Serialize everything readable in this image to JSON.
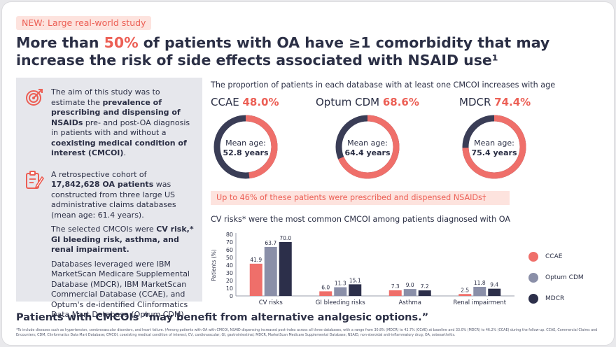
{
  "badge": "NEW: Large real-world study",
  "headline": {
    "part1": "More than ",
    "highlight": "50%",
    "part2": " of patients with OA have ≥1 comorbidity that may increase the risk of side effects associated with NSAID use¹"
  },
  "sidepanel": {
    "block1": {
      "t1": "The aim of this study was to estimate the ",
      "b1": "prevalence of prescribing and dispensing of NSAIDs",
      "t2": " pre- and post-OA diagnosis in patients with and without a ",
      "b2": "coexisting medical condition of interest (CMCOI)",
      "t3": "."
    },
    "block2": {
      "p1_t1": "A retrospective cohort of ",
      "p1_b1": "17,842,628 OA patients",
      "p1_t2": " was constructed from three large US administrative claims databases (mean age: 61.4 years).",
      "p2_t1": "The selected CMCOIs were ",
      "p2_b1": "CV risk,* GI bleeding risk, asthma, and renal impairment.",
      "p3": "Databases leveraged were IBM MarketScan Medicare Supplemental Database (MDCR), IBM MarketScan Commercial Database (CCAE), and Optum's de-identified Clinformatics Data Mart Database (Optum CDM)."
    }
  },
  "donut_section_title": "The proportion of patients in each database with at least one CMCOI increases with age",
  "databases": [
    {
      "name": "CCAE",
      "pct_label": "48.0%",
      "fraction": 0.48,
      "age_label": "Mean age:",
      "age_value": "52.8 years"
    },
    {
      "name": "Optum CDM",
      "pct_label": "68.6%",
      "fraction": 0.686,
      "age_label": "Mean age:",
      "age_value": "64.4 years"
    },
    {
      "name": "MDCR",
      "pct_label": "74.4%",
      "fraction": 0.744,
      "age_label": "Mean age:",
      "age_value": "75.4 years"
    }
  ],
  "nsaid_banner": "Up to 46% of these patients were prescribed and dispensed NSAIDs†",
  "chart_section_title": "CV risks* were the most common CMCOI among patients diagnosed with OA",
  "colors": {
    "ccae": "#ef6f6a",
    "optum": "#8a8fa8",
    "mdcr": "#2c2f4a",
    "accent": "#ec5f55",
    "donut_track": "#3a3d56"
  },
  "chart_data": {
    "type": "bar",
    "categories": [
      "CV risks",
      "GI bleeding risks",
      "Asthma",
      "Renal impairment"
    ],
    "series": [
      {
        "name": "CCAE",
        "values": [
          41.9,
          6.0,
          7.3,
          2.5
        ],
        "labels": [
          "41.9",
          "6.0",
          "7.3",
          "2.5"
        ]
      },
      {
        "name": "Optum CDM",
        "values": [
          63.7,
          11.3,
          9.0,
          11.8
        ],
        "labels": [
          "63.7",
          "11.3",
          "9.0",
          "11.8"
        ]
      },
      {
        "name": "MDCR",
        "values": [
          70.0,
          15.1,
          7.2,
          9.4
        ],
        "labels": [
          "70.0",
          "15.1",
          "7.2",
          "9.4"
        ]
      }
    ],
    "ylabel": "Patients (%)",
    "ylim": [
      0,
      80
    ],
    "yticks": [
      "0",
      "10",
      "20",
      "30",
      "40",
      "50",
      "60",
      "70",
      "80"
    ],
    "legend_position": "right"
  },
  "footer_title": "Patients with CMCOIs “may benefit from alternative analgesic options.”",
  "footnote": "*To include diseases such as hypertension, cerebrovascular disorders, and heart failure. †Among patients with OA with CMCOI, NSAID dispensing increased post-index across all three databases, with a range from 30.8% (MDCR) to 42.7% (CCAE) at baseline and 33.0% (MDCR) to 46.2% (CCAE) during the follow-up. CCAE, Commercial Claims and Encounters; CDM, Clinformatics Data Mart Database; CMCOI, coexisting medical condition of interest; CV, cardiovascular; GI, gastrointestinal; MDCR, MarketScan Medicare Supplemental Database; NSAID, non-steroidal anti-inflammatory drug; OA, osteoarthritis."
}
